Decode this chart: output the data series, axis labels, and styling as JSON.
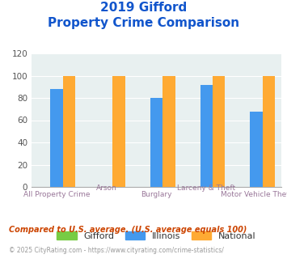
{
  "title_line1": "2019 Gifford",
  "title_line2": "Property Crime Comparison",
  "categories": [
    "All Property Crime",
    "Arson",
    "Burglary",
    "Larceny & Theft",
    "Motor Vehicle Theft"
  ],
  "gifford": [
    0,
    0,
    0,
    0,
    0
  ],
  "illinois": [
    88,
    0,
    80,
    92,
    68
  ],
  "national": [
    100,
    100,
    100,
    100,
    100
  ],
  "colors": {
    "gifford": "#77cc44",
    "illinois": "#4499ee",
    "national": "#ffaa33"
  },
  "ylim": [
    0,
    120
  ],
  "yticks": [
    0,
    20,
    40,
    60,
    80,
    100,
    120
  ],
  "legend_labels": [
    "Gifford",
    "Illinois",
    "National"
  ],
  "footnote1": "Compared to U.S. average. (U.S. average equals 100)",
  "footnote2": "© 2025 CityRating.com - https://www.cityrating.com/crime-statistics/",
  "bg_color": "#e8f0f0",
  "title_color": "#1155cc",
  "xlabel_color": "#997799",
  "footnote1_color": "#cc4400",
  "footnote2_color": "#999999"
}
